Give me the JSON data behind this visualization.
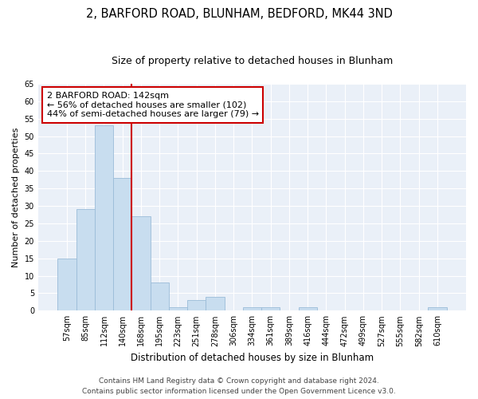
{
  "title": "2, BARFORD ROAD, BLUNHAM, BEDFORD, MK44 3ND",
  "subtitle": "Size of property relative to detached houses in Blunham",
  "xlabel": "Distribution of detached houses by size in Blunham",
  "ylabel": "Number of detached properties",
  "categories": [
    "57sqm",
    "85sqm",
    "112sqm",
    "140sqm",
    "168sqm",
    "195sqm",
    "223sqm",
    "251sqm",
    "278sqm",
    "306sqm",
    "334sqm",
    "361sqm",
    "389sqm",
    "416sqm",
    "444sqm",
    "472sqm",
    "499sqm",
    "527sqm",
    "555sqm",
    "582sqm",
    "610sqm"
  ],
  "values": [
    15,
    29,
    53,
    38,
    27,
    8,
    1,
    3,
    4,
    0,
    1,
    1,
    0,
    1,
    0,
    0,
    0,
    0,
    0,
    0,
    1
  ],
  "bar_color": "#c8ddef",
  "bar_edge_color": "#9bbcd8",
  "highlight_bar_index": 3,
  "highlight_line_color": "#cc0000",
  "ylim": [
    0,
    65
  ],
  "yticks": [
    0,
    5,
    10,
    15,
    20,
    25,
    30,
    35,
    40,
    45,
    50,
    55,
    60,
    65
  ],
  "annotation_text": "2 BARFORD ROAD: 142sqm\n← 56% of detached houses are smaller (102)\n44% of semi-detached houses are larger (79) →",
  "annotation_box_color": "#ffffff",
  "annotation_box_edge": "#cc0000",
  "footer_line1": "Contains HM Land Registry data © Crown copyright and database right 2024.",
  "footer_line2": "Contains public sector information licensed under the Open Government Licence v3.0.",
  "background_color": "#eaf0f8",
  "grid_color": "#ffffff",
  "title_fontsize": 10.5,
  "subtitle_fontsize": 9,
  "tick_fontsize": 7,
  "xlabel_fontsize": 8.5,
  "ylabel_fontsize": 8,
  "annotation_fontsize": 8,
  "footer_fontsize": 6.5
}
